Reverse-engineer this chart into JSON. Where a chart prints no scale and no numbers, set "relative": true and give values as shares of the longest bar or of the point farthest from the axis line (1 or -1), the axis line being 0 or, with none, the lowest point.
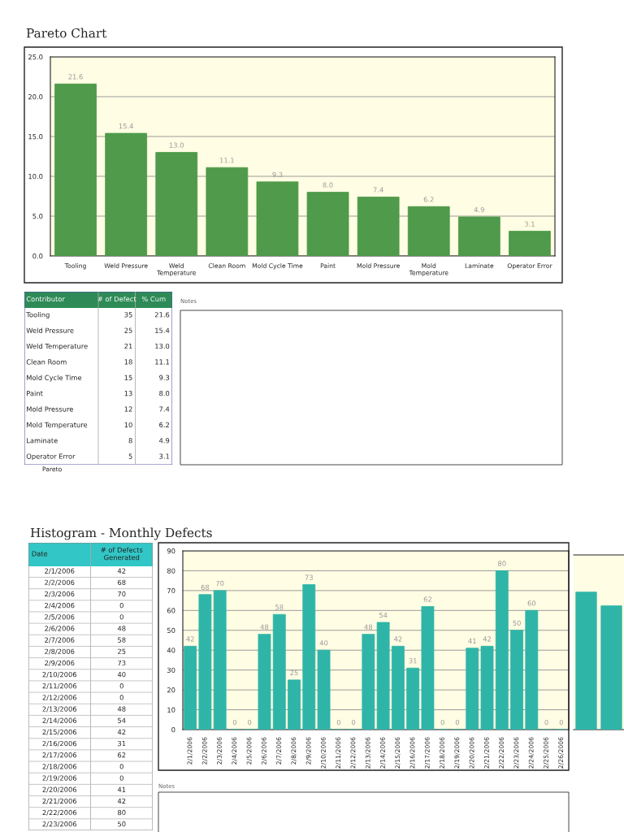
{
  "chart_data": [
    {
      "type": "bar",
      "title": "Pareto Chart",
      "categories": [
        "Tooling",
        "Weld Pressure",
        "Weld Temperature",
        "Clean Room",
        "Mold Cycle Time",
        "Paint",
        "Mold Pressure",
        "Mold Temperature",
        "Laminate",
        "Operator Error"
      ],
      "values": [
        21.6,
        15.4,
        13.0,
        11.1,
        9.3,
        8.0,
        7.4,
        6.2,
        4.9,
        3.1
      ],
      "value_labels": [
        "21.6",
        "15.4",
        "13.0",
        "11.1",
        "9.3",
        "8.0",
        "7.4",
        "6.2",
        "4.9",
        "3.1"
      ],
      "color": "#4f9a4b",
      "ylim": [
        0,
        25
      ],
      "yticks": [
        {
          "value": 0,
          "label": "0.0"
        },
        {
          "value": 5,
          "label": "5.0"
        },
        {
          "value": 10,
          "label": "10.0"
        },
        {
          "value": 15,
          "label": "15.0"
        },
        {
          "value": 20,
          "label": "20.0"
        },
        {
          "value": 25,
          "label": "25.0"
        }
      ],
      "grid": "y",
      "data_labels": true
    },
    {
      "type": "other",
      "xlabel": "Contributor",
      "categories": [
        "Tooling",
        "Weld Pressure",
        "Weld Temperature",
        "Clean Room",
        "Mold Cycle Time",
        "Paint",
        "Mold Pressure",
        "Mold Temperature",
        "Laminate",
        "Operator Error"
      ],
      "data_labels": true,
      "series": [
        {
          "name": "# of Defect",
          "values": [
            35,
            25,
            21,
            18,
            15,
            13,
            12,
            10,
            8,
            5
          ]
        },
        {
          "name": "% Cum",
          "values": [
            21.6,
            15.4,
            13.0,
            11.1,
            9.3,
            8.0,
            7.4,
            6.2,
            4.9,
            3.1
          ],
          "value_labels": [
            "21.6",
            "15.4",
            "13.0",
            "11.1",
            "9.3",
            "8.0",
            "7.4",
            "6.2",
            "4.9",
            "3.1"
          ]
        }
      ],
      "annotations": [
        "Pareto",
        "Notes"
      ]
    },
    {
      "type": "other",
      "title": "Histogram - Monthly Defects",
      "xlabel": "Date",
      "categories": [
        "2/1/2006",
        "2/2/2006",
        "2/3/2006",
        "2/4/2006",
        "2/5/2006",
        "2/6/2006",
        "2/7/2006",
        "2/8/2006",
        "2/9/2006",
        "2/10/2006",
        "2/11/2006",
        "2/12/2006",
        "2/13/2006",
        "2/14/2006",
        "2/15/2006",
        "2/16/2006",
        "2/17/2006",
        "2/18/2006",
        "2/19/2006",
        "2/20/2006",
        "2/21/2006",
        "2/22/2006",
        "2/23/2006"
      ],
      "data_labels": true,
      "series": [
        {
          "name": "# of Defects Generated",
          "values": [
            42,
            68,
            70,
            0,
            0,
            48,
            58,
            25,
            73,
            40,
            0,
            0,
            48,
            54,
            42,
            31,
            62,
            0,
            0,
            41,
            42,
            80,
            50
          ]
        }
      ]
    },
    {
      "type": "bar",
      "categories": [
        "2/1/2006",
        "2/2/2006",
        "2/3/2006",
        "2/4/2006",
        "2/5/2006",
        "2/6/2006",
        "2/7/2006",
        "2/8/2006",
        "2/9/2006",
        "2/10/2006",
        "2/11/2006",
        "2/12/2006",
        "2/13/2006",
        "2/14/2006",
        "2/15/2006",
        "2/16/2006",
        "2/17/2006",
        "2/18/2006",
        "2/19/2006",
        "2/20/2006",
        "2/21/2006",
        "2/22/2006",
        "2/23/2006",
        "2/24/2006",
        "2/25/2006",
        "2/26/2006"
      ],
      "values": [
        42,
        68,
        70,
        0,
        0,
        48,
        58,
        25,
        73,
        40,
        0,
        0,
        48,
        54,
        42,
        31,
        62,
        0,
        0,
        41,
        42,
        80,
        50,
        60,
        0,
        0
      ],
      "color": "#2fb5a8",
      "ylim": [
        0,
        90
      ],
      "yticks": [
        0,
        10,
        20,
        30,
        40,
        50,
        60,
        70,
        80,
        90
      ],
      "grid": "y",
      "data_labels": true,
      "annotations": [
        "Notes"
      ]
    },
    {
      "type": "bar",
      "relative": true,
      "categories": [
        null,
        null
      ],
      "values": [
        1,
        0.9
      ],
      "color": "#2fb5a8"
    }
  ]
}
